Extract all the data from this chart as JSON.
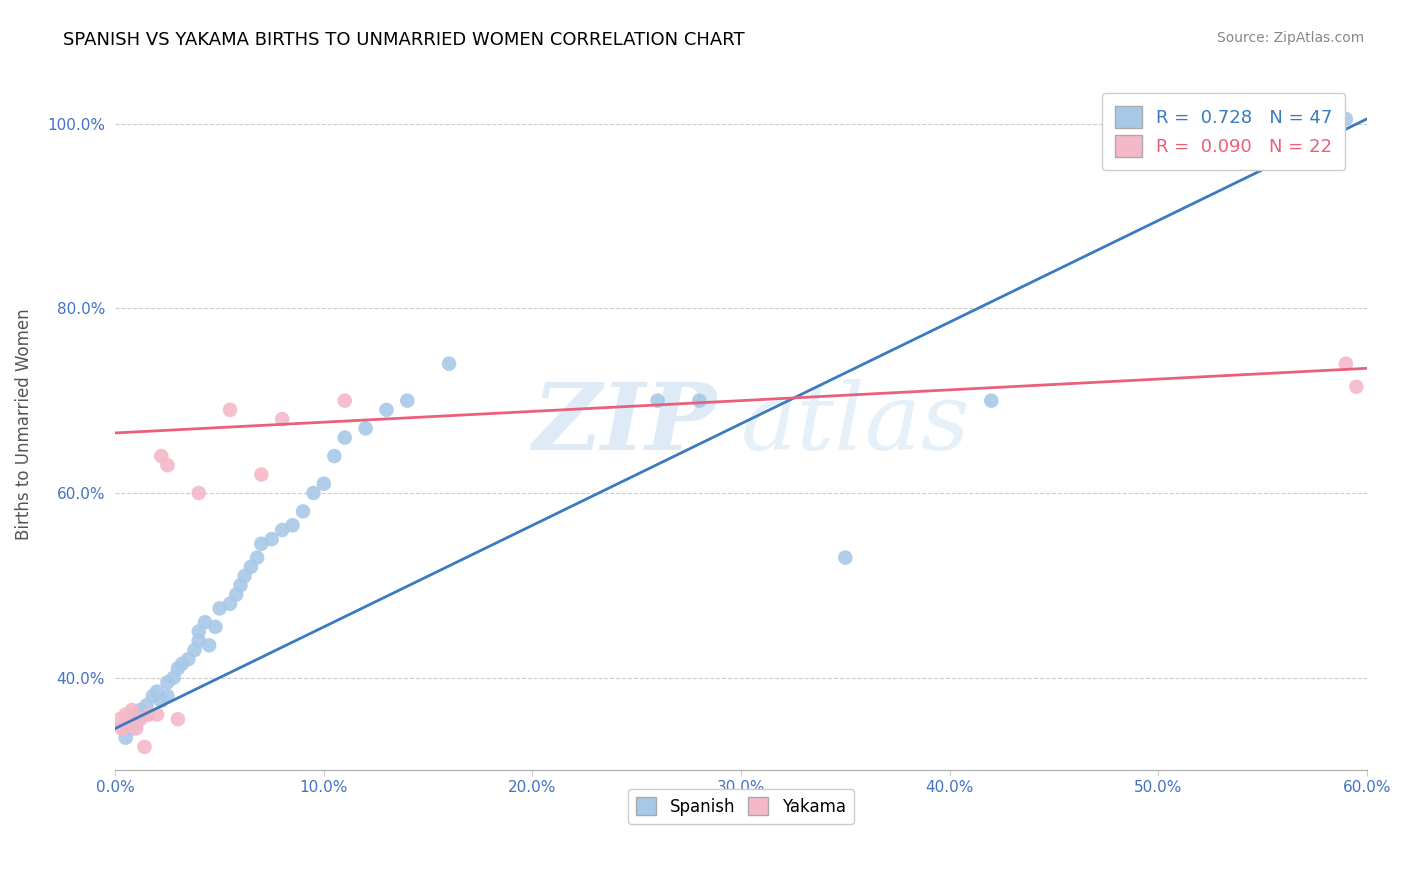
{
  "title": "SPANISH VS YAKAMA BIRTHS TO UNMARRIED WOMEN CORRELATION CHART",
  "source_text": "Source: ZipAtlas.com",
  "ylabel": "Births to Unmarried Women",
  "xlim": [
    0.0,
    0.6
  ],
  "ylim": [
    0.3,
    1.05
  ],
  "ytick_labels": [
    "40.0%",
    "60.0%",
    "80.0%",
    "100.0%"
  ],
  "ytick_values": [
    0.4,
    0.6,
    0.8,
    1.0
  ],
  "xtick_labels": [
    "0.0%",
    "10.0%",
    "20.0%",
    "30.0%",
    "40.0%",
    "50.0%",
    "60.0%"
  ],
  "xtick_values": [
    0.0,
    0.1,
    0.2,
    0.3,
    0.4,
    0.5,
    0.6
  ],
  "legend_blue_label": "R =  0.728   N = 47",
  "legend_pink_label": "R =  0.090   N = 22",
  "blue_scatter_color": "#a8c8e8",
  "pink_scatter_color": "#f4b8c8",
  "blue_line_color": "#3a7abf",
  "pink_line_color": "#e8607a",
  "watermark_zip": "ZIP",
  "watermark_atlas": "atlas",
  "spanish_x": [
    0.005,
    0.008,
    0.01,
    0.01,
    0.012,
    0.015,
    0.015,
    0.018,
    0.02,
    0.022,
    0.025,
    0.025,
    0.028,
    0.03,
    0.032,
    0.035,
    0.038,
    0.04,
    0.04,
    0.043,
    0.045,
    0.048,
    0.05,
    0.055,
    0.058,
    0.06,
    0.062,
    0.065,
    0.068,
    0.07,
    0.075,
    0.08,
    0.085,
    0.09,
    0.095,
    0.1,
    0.105,
    0.11,
    0.12,
    0.13,
    0.14,
    0.16,
    0.26,
    0.28,
    0.35,
    0.42,
    0.59
  ],
  "spanish_y": [
    0.335,
    0.345,
    0.35,
    0.36,
    0.365,
    0.36,
    0.37,
    0.38,
    0.385,
    0.375,
    0.38,
    0.395,
    0.4,
    0.41,
    0.415,
    0.42,
    0.43,
    0.44,
    0.45,
    0.46,
    0.435,
    0.455,
    0.475,
    0.48,
    0.49,
    0.5,
    0.51,
    0.52,
    0.53,
    0.545,
    0.55,
    0.56,
    0.565,
    0.58,
    0.6,
    0.61,
    0.64,
    0.66,
    0.67,
    0.69,
    0.7,
    0.74,
    0.7,
    0.7,
    0.53,
    0.7,
    1.005
  ],
  "yakama_x": [
    0.002,
    0.003,
    0.004,
    0.005,
    0.006,
    0.008,
    0.01,
    0.01,
    0.012,
    0.014,
    0.016,
    0.02,
    0.022,
    0.025,
    0.03,
    0.04,
    0.055,
    0.07,
    0.08,
    0.11,
    0.59,
    0.595
  ],
  "yakama_y": [
    0.355,
    0.345,
    0.345,
    0.36,
    0.355,
    0.365,
    0.345,
    0.355,
    0.355,
    0.325,
    0.36,
    0.36,
    0.64,
    0.63,
    0.355,
    0.6,
    0.69,
    0.62,
    0.68,
    0.7,
    0.74,
    0.715
  ],
  "blue_line_x": [
    0.0,
    0.6
  ],
  "blue_line_y": [
    0.345,
    1.005
  ],
  "pink_line_x": [
    0.0,
    0.6
  ],
  "pink_line_y": [
    0.665,
    0.735
  ]
}
